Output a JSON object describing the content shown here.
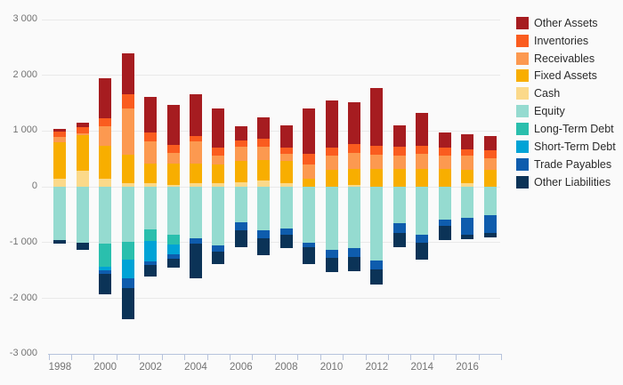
{
  "background": "#fafafa",
  "chart_data": {
    "type": "bar",
    "stacked": true,
    "title": "",
    "xlabel": "",
    "ylabel": "",
    "grid": true,
    "legend_position": "right",
    "ylim": [
      -3000,
      3000
    ],
    "y_ticks": [
      {
        "value": 3000,
        "label": "3 000"
      },
      {
        "value": 2000,
        "label": "2 000"
      },
      {
        "value": 1000,
        "label": "1 000"
      },
      {
        "value": 0,
        "label": "0"
      },
      {
        "value": -1000,
        "label": "-1 000"
      },
      {
        "value": -2000,
        "label": "-2 000"
      },
      {
        "value": -3000,
        "label": "-3 000"
      }
    ],
    "categories": [
      "1998",
      "1999",
      "2000",
      "2001",
      "2002",
      "2003",
      "2004",
      "2005",
      "2006",
      "2007",
      "2008",
      "2009",
      "2010",
      "2011",
      "2012",
      "2013",
      "2014",
      "2015",
      "2016",
      "2017"
    ],
    "x_axis_labeled_years": [
      "1998",
      "2000",
      "2002",
      "2004",
      "2006",
      "2008",
      "2010",
      "2012",
      "2014",
      "2016"
    ],
    "stack_order_assets": [
      "Cash",
      "Fixed Assets",
      "Receivables",
      "Inventories",
      "Other Assets"
    ],
    "stack_order_liabilities": [
      "Equity",
      "Long-Term Debt",
      "Short-Term Debt",
      "Trade Payables",
      "Other Liabilities"
    ],
    "series": [
      {
        "name": "Other Assets",
        "color": "#a61c20",
        "values": [
          50,
          80,
          715,
          720,
          650,
          705,
          750,
          700,
          255,
          380,
          400,
          810,
          835,
          750,
          1040,
          385,
          575,
          270,
          270,
          255
        ]
      },
      {
        "name": "Inventories",
        "color": "#fa5c1f",
        "values": [
          90,
          110,
          135,
          265,
          160,
          145,
          95,
          145,
          125,
          145,
          110,
          190,
          145,
          160,
          145,
          160,
          145,
          145,
          125,
          145
        ]
      },
      {
        "name": "Receivables",
        "color": "#fc9950",
        "values": [
          95,
          35,
          355,
          825,
          385,
          190,
          385,
          145,
          255,
          240,
          140,
          255,
          255,
          300,
          270,
          240,
          285,
          240,
          255,
          220
        ]
      },
      {
        "name": "Fixed Assets",
        "color": "#f8ae00",
        "values": [
          645,
          635,
          600,
          520,
          350,
          385,
          365,
          350,
          370,
          355,
          385,
          135,
          300,
          275,
          305,
          305,
          305,
          305,
          240,
          290
        ]
      },
      {
        "name": "Cash",
        "color": "#fbd98a",
        "values": [
          145,
          285,
          130,
          50,
          65,
          30,
          50,
          50,
          80,
          110,
          65,
          0,
          0,
          30,
          0,
          0,
          0,
          0,
          50,
          0
        ]
      },
      {
        "name": "Equity",
        "color": "#95dbd0",
        "values": [
          -965,
          -1015,
          -1030,
          -1000,
          -770,
          -865,
          -925,
          -1060,
          -640,
          -785,
          -750,
          -1010,
          -1135,
          -1110,
          -1330,
          -660,
          -870,
          -600,
          -560,
          -520
        ]
      },
      {
        "name": "Long-Term Debt",
        "color": "#2abfad",
        "values": [
          0,
          0,
          -415,
          -320,
          -205,
          -175,
          0,
          0,
          0,
          0,
          0,
          0,
          0,
          0,
          0,
          0,
          0,
          0,
          0,
          0
        ]
      },
      {
        "name": "Short-Term Debt",
        "color": "#00a3d6",
        "values": [
          0,
          0,
          -65,
          -335,
          -365,
          -175,
          0,
          0,
          0,
          0,
          0,
          0,
          0,
          0,
          0,
          0,
          0,
          0,
          0,
          0
        ]
      },
      {
        "name": "Trade Payables",
        "color": "#0e5cad",
        "values": [
          0,
          0,
          -60,
          -165,
          -65,
          -80,
          -95,
          -115,
          -145,
          -145,
          -110,
          -85,
          -145,
          -150,
          -155,
          -180,
          -145,
          -115,
          -310,
          -320
        ]
      },
      {
        "name": "Other Liabilities",
        "color": "#0b3357",
        "values": [
          -60,
          -130,
          -365,
          -560,
          -205,
          -160,
          -625,
          -215,
          -300,
          -300,
          -240,
          -295,
          -255,
          -255,
          -275,
          -250,
          -295,
          -245,
          -70,
          -70
        ]
      }
    ],
    "colors": {
      "gridline": "#e9e9e9",
      "axis_line": "#b7c3dc",
      "tick_label": "#737373",
      "legend_text": "#2b2b2b"
    }
  }
}
